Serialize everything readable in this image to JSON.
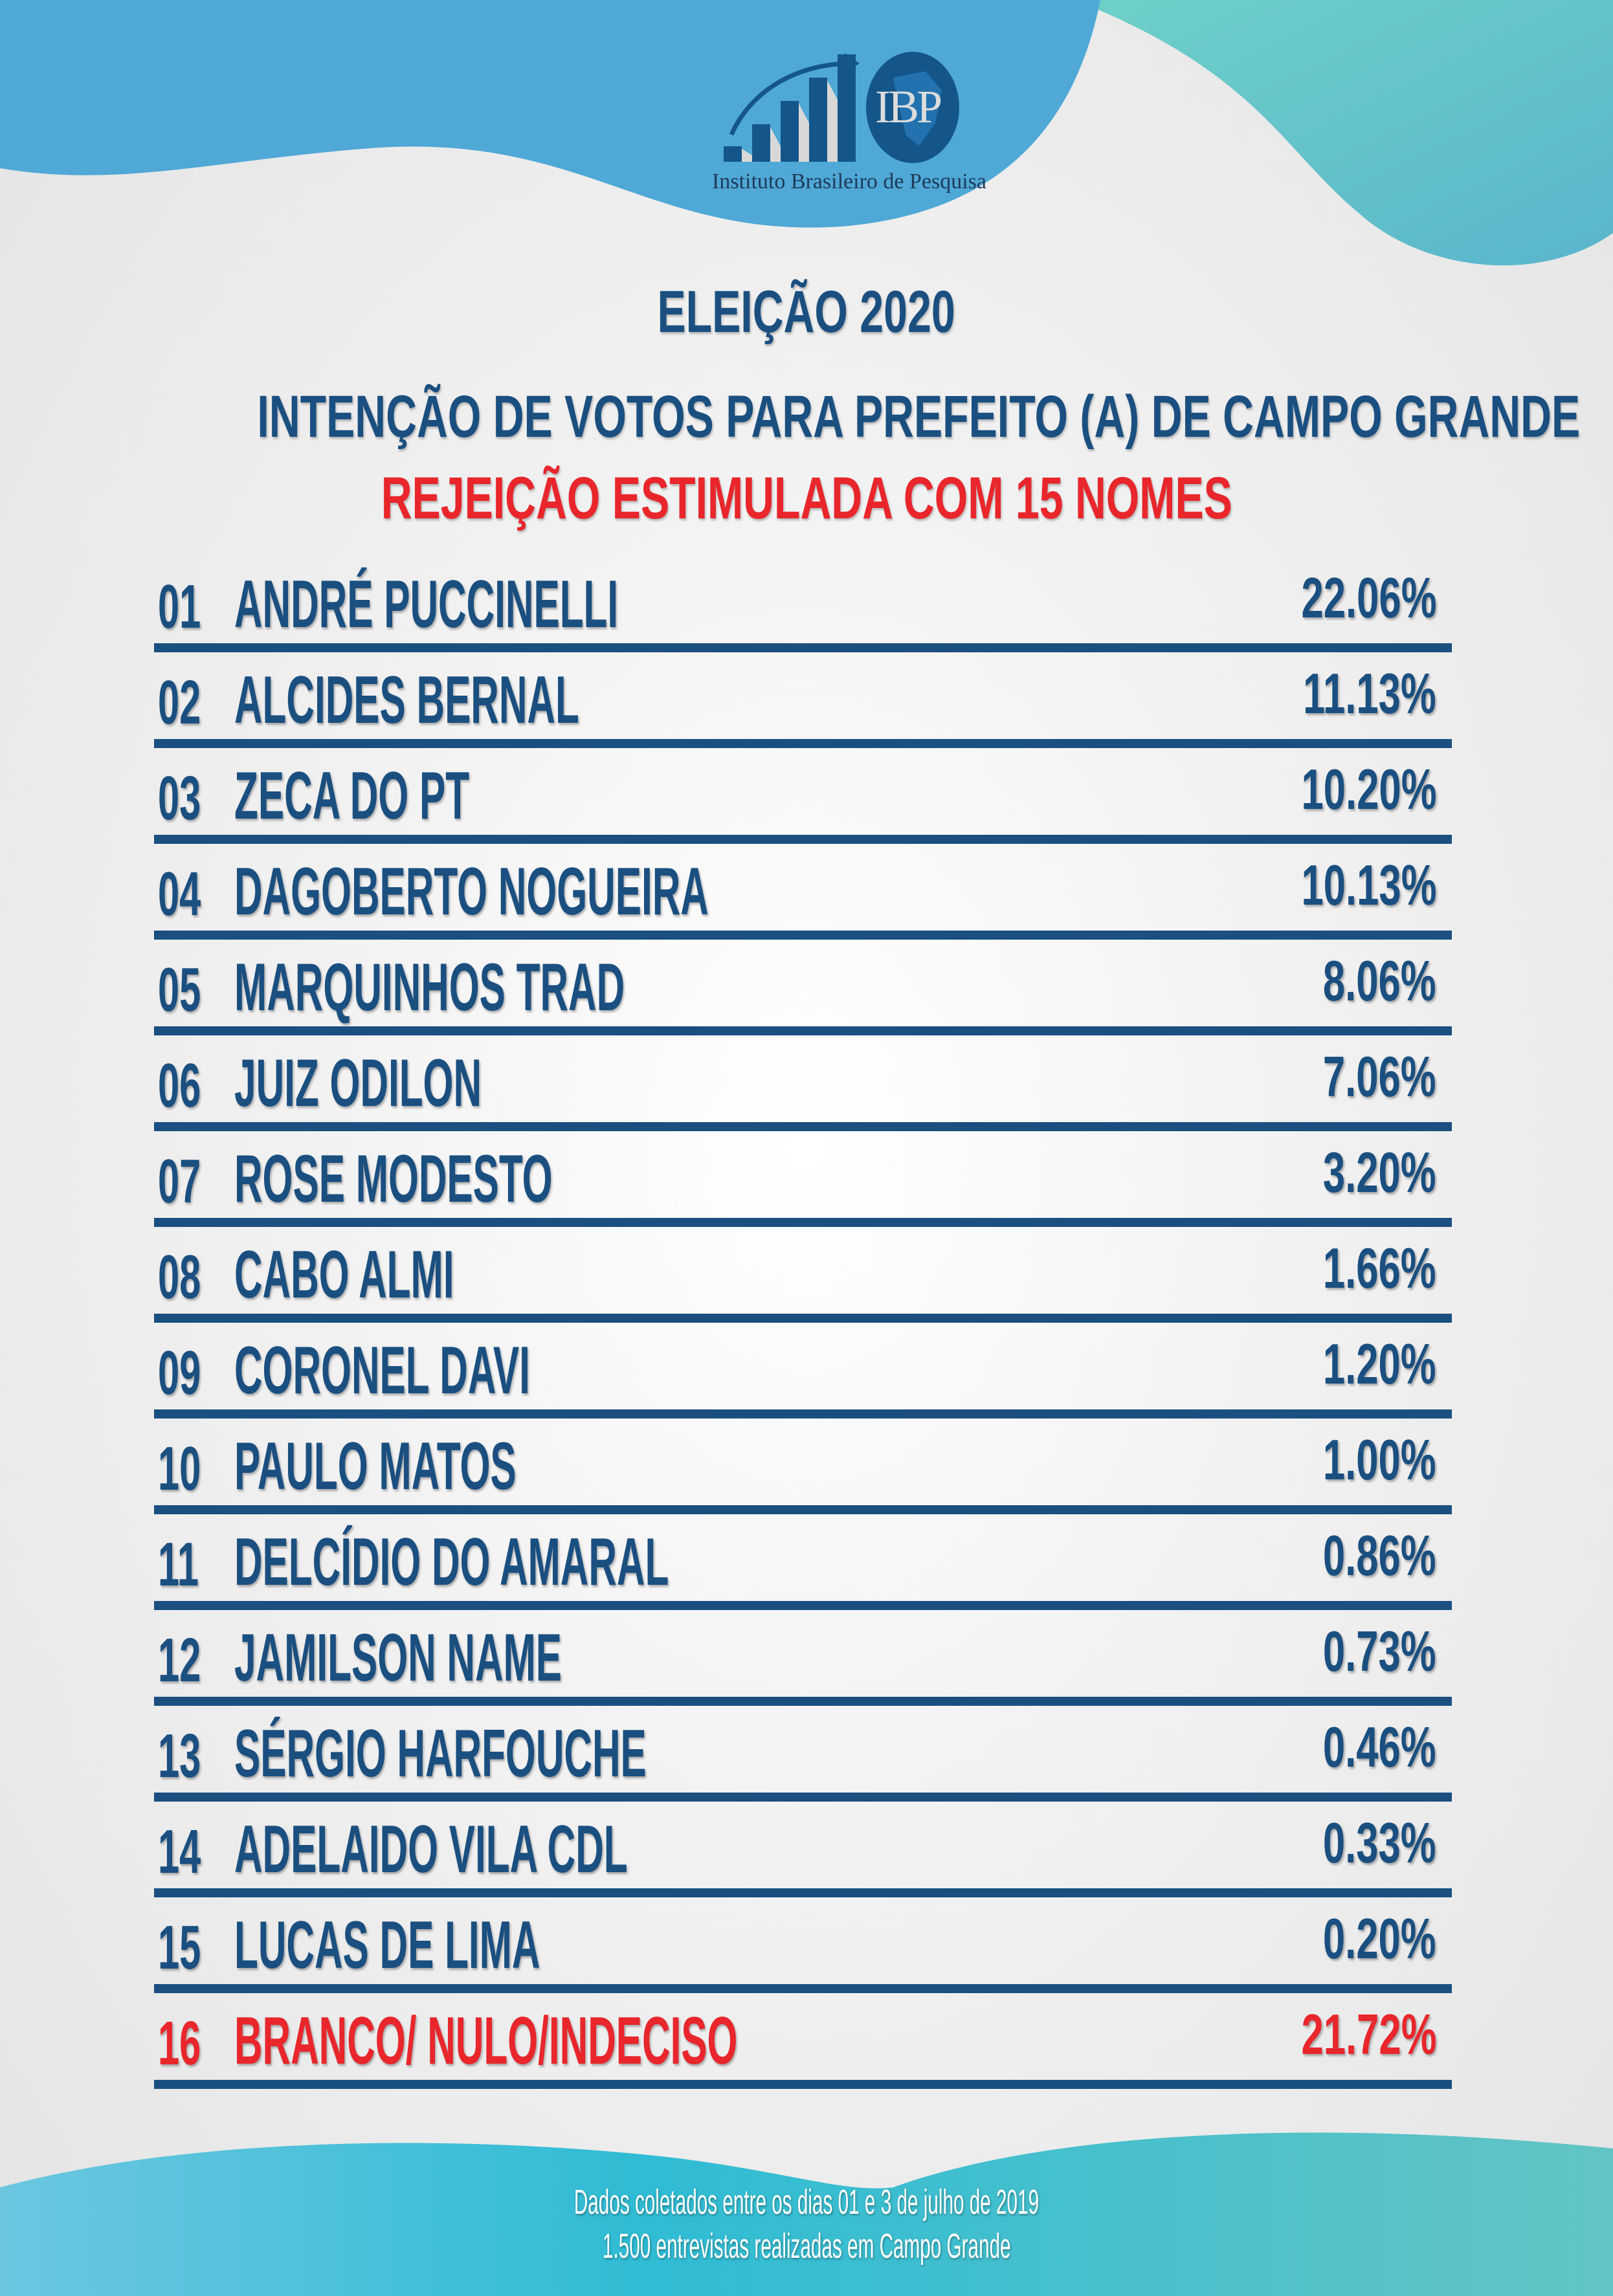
{
  "logo": {
    "letters": "IBP",
    "tagline": "Instituto Brasileiro de Pesquisa"
  },
  "header": {
    "title": "ELEIÇÃO 2020",
    "subtitle": "INTENÇÃO DE VOTOS PARA PREFEITO (A) DE CAMPO GRANDE",
    "highlight": "REJEIÇÃO ESTIMULADA COM 15 NOMES"
  },
  "colors": {
    "primary": "#1a4f80",
    "highlight": "#e8262b",
    "wave_blue": "#4fa8d6",
    "wave_teal": "#63c4c4"
  },
  "candidates": [
    {
      "num": "01",
      "name": "ANDRÉ PUCCINELLI",
      "pct": "22.06%"
    },
    {
      "num": "02",
      "name": "ALCIDES BERNAL",
      "pct": "11.13%"
    },
    {
      "num": "03",
      "name": "ZECA DO PT",
      "pct": "10.20%"
    },
    {
      "num": "04",
      "name": "DAGOBERTO NOGUEIRA",
      "pct": "10.13%"
    },
    {
      "num": "05",
      "name": "MARQUINHOS TRAD",
      "pct": "8.06%"
    },
    {
      "num": "06",
      "name": "JUIZ ODILON",
      "pct": "7.06%"
    },
    {
      "num": "07",
      "name": "ROSE MODESTO",
      "pct": "3.20%"
    },
    {
      "num": "08",
      "name": "CABO ALMI",
      "pct": "1.66%"
    },
    {
      "num": "09",
      "name": "CORONEL DAVI",
      "pct": "1.20%"
    },
    {
      "num": "10",
      "name": "PAULO MATOS",
      "pct": "1.00%"
    },
    {
      "num": "11",
      "name": "DELCÍDIO DO AMARAL",
      "pct": "0.86%"
    },
    {
      "num": "12",
      "name": "JAMILSON NAME",
      "pct": "0.73%"
    },
    {
      "num": "13",
      "name": "SÉRGIO HARFOUCHE",
      "pct": "0.46%"
    },
    {
      "num": "14",
      "name": "ADELAIDO VILA CDL",
      "pct": "0.33%"
    },
    {
      "num": "15",
      "name": "LUCAS DE LIMA",
      "pct": "0.20%"
    },
    {
      "num": "16",
      "name": "BRANCO/ NULO/INDECISO",
      "pct": "21.72%",
      "highlight": true
    }
  ],
  "footer": {
    "line1": "Dados coletados entre os dias 01 e 3 de julho de 2019",
    "line2": "1.500 entrevistas realizadas em Campo Grande"
  }
}
